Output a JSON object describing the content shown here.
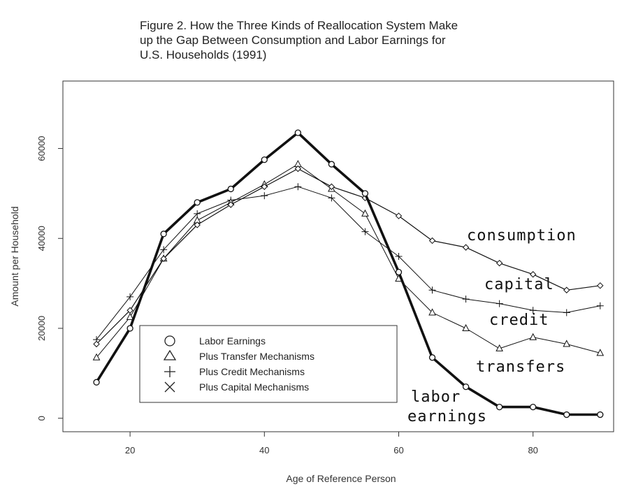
{
  "title_lines": [
    "Figure 2. How the Three Kinds of Reallocation System Make",
    "up the Gap Between Consumption and Labor Earnings for",
    "U.S. Households (1991)"
  ],
  "chart_data": {
    "type": "line",
    "title": "Figure 2. How the Three Kinds of Reallocation System Make up the Gap Between Consumption and Labor Earnings for U.S. Households (1991)",
    "xlabel": "Age of Reference Person",
    "ylabel": "Amount per Household",
    "xlim": [
      10,
      92
    ],
    "ylim": [
      -3000,
      75000
    ],
    "xticks": [
      20,
      40,
      60,
      80
    ],
    "yticks": [
      0,
      20000,
      40000,
      60000
    ],
    "grid": false,
    "legend_position": "bottom-left",
    "x": [
      15,
      20,
      25,
      30,
      35,
      40,
      45,
      50,
      55,
      60,
      65,
      70,
      75,
      80,
      85,
      90
    ],
    "series": [
      {
        "name": "Labor Earnings",
        "marker": "circle",
        "values": [
          8000,
          20000,
          41000,
          48000,
          51000,
          57500,
          63500,
          56500,
          50000,
          32500,
          13500,
          7000,
          2500,
          2500,
          800,
          800
        ]
      },
      {
        "name": "Plus Transfer Mechanisms",
        "marker": "triangle",
        "values": [
          13500,
          22500,
          35500,
          44000,
          48000,
          52000,
          56500,
          51000,
          45500,
          31000,
          23500,
          20000,
          15500,
          18000,
          16500,
          14500
        ]
      },
      {
        "name": "Plus Credit Mechanisms",
        "marker": "plus",
        "values": [
          17500,
          27000,
          37500,
          45500,
          48500,
          49500,
          51500,
          49000,
          41500,
          36000,
          28500,
          26500,
          25500,
          24000,
          23500,
          25000
        ]
      },
      {
        "name": "Plus Capital Mechanisms",
        "marker": "cross",
        "values": [
          16500,
          24000,
          35500,
          43000,
          47500,
          51500,
          55500,
          51500,
          49000,
          45000,
          39500,
          38000,
          34500,
          32000,
          28500,
          29500
        ]
      }
    ],
    "annotations": [
      "consumption",
      "capital",
      "credit",
      "transfers",
      "labor",
      "earnings"
    ]
  }
}
